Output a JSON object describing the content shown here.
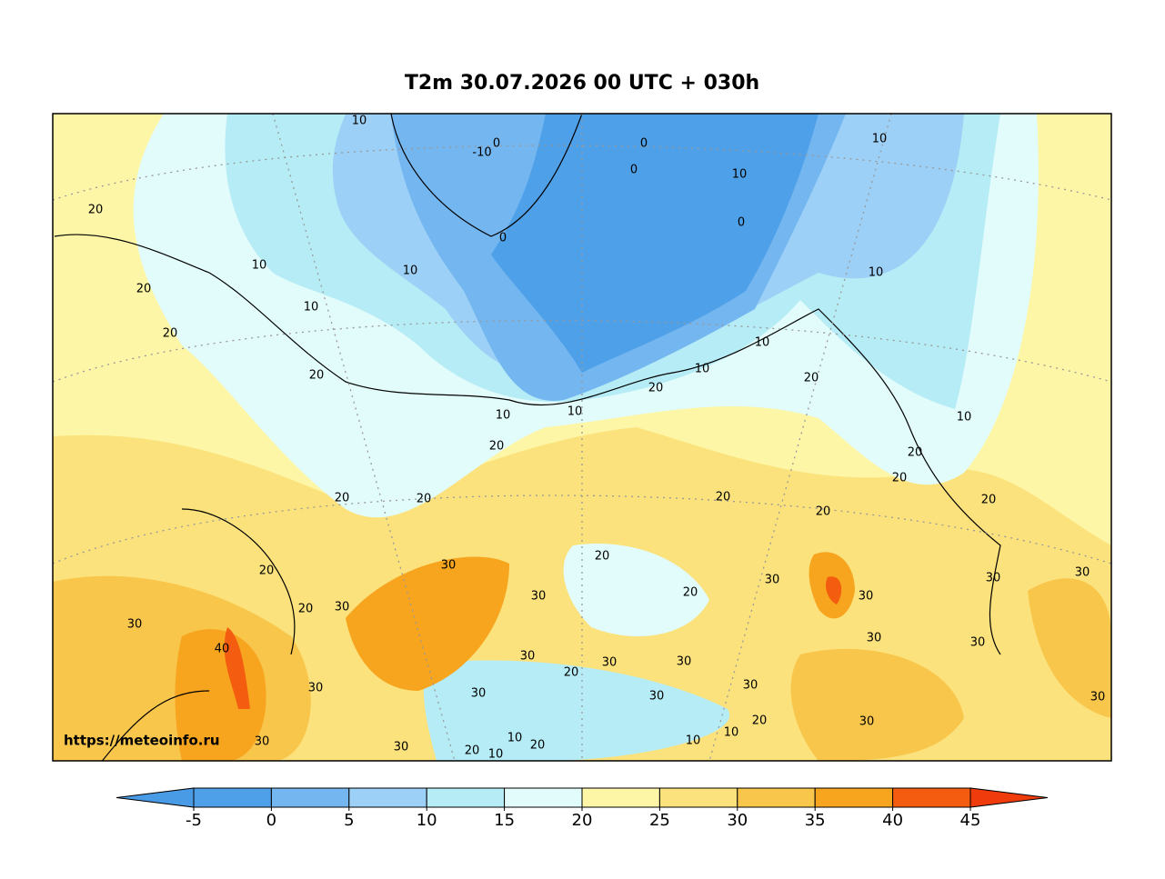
{
  "title": "T2m 30.07.2026 00 UTC + 030h",
  "watermark": "https://meteoinfo.ru",
  "colorbar": {
    "ticks": [
      -5,
      0,
      5,
      10,
      15,
      20,
      25,
      30,
      35,
      40,
      45
    ],
    "colors": [
      "#4a9be6",
      "#4ea0e9",
      "#74b6f0",
      "#9dd0f6",
      "#b6ecf6",
      "#e2fbfb",
      "#fdf6a6",
      "#fbe27c",
      "#f9c64c",
      "#f7a41e",
      "#f45c10",
      "#f03c0c"
    ]
  },
  "contour_labels": [
    10,
    -10,
    0,
    0,
    0,
    10,
    10,
    0,
    20,
    10,
    10,
    10,
    20,
    10,
    0,
    20,
    10,
    10,
    20,
    20,
    20,
    10,
    10,
    10,
    20,
    20,
    20,
    20,
    20,
    20,
    20,
    20,
    20,
    30,
    20,
    30,
    30,
    30,
    30,
    20,
    30,
    20,
    30,
    30,
    30,
    30,
    40,
    30,
    30,
    30,
    20,
    30,
    30,
    30,
    30,
    30,
    20,
    30,
    10,
    10,
    10,
    30,
    30,
    20,
    20,
    10
  ]
}
